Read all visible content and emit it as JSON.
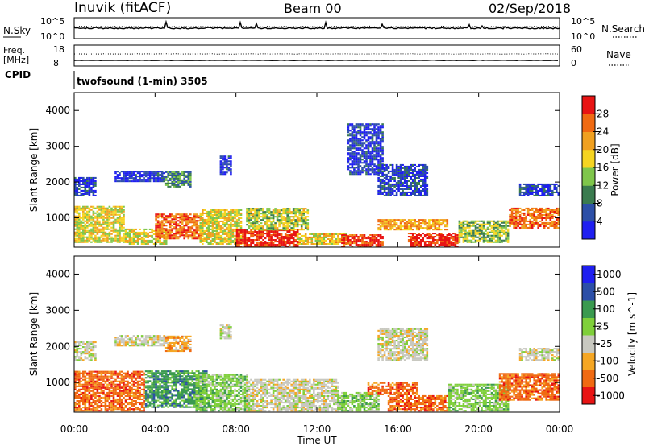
{
  "header": {
    "station": "Inuvik (fitACF)",
    "beam": "Beam 00",
    "date": "02/Sep/2018"
  },
  "noise_panel": {
    "left_label": "N.Sky",
    "left_ticks": [
      "10^5",
      "10^0"
    ],
    "right_ticks": [
      "10^5",
      "10^0"
    ],
    "right_label": "N.Search"
  },
  "freq_panel": {
    "left_label_1": "Freq.",
    "left_label_2": "[MHz]",
    "left_ticks": [
      "18",
      "8"
    ],
    "right_ticks": [
      "60",
      "0"
    ],
    "right_label": "Nave"
  },
  "cpid_panel": {
    "label": "CPID",
    "program": "twofsound (1-min) 3505"
  },
  "colors": {
    "power": [
      "#1f1ff0",
      "#2c4fa7",
      "#3a7b4f",
      "#7fc64b",
      "#f5d421",
      "#f0a020",
      "#f06a12",
      "#e81414"
    ],
    "velocity": [
      "#e81414",
      "#f06a12",
      "#f5a623",
      "#c8c8c0",
      "#7fcf3a",
      "#3a9a4f",
      "#2c4fa7",
      "#1f1ff0"
    ]
  },
  "chart_data": [
    {
      "type": "heatmap",
      "title": "Power",
      "xlabel": "Time UT",
      "ylabel": "Slant Range [km]",
      "x_ticks": [
        "00:00",
        "04:00",
        "08:00",
        "12:00",
        "16:00",
        "20:00",
        "00:00"
      ],
      "x_range_hours": [
        0,
        24
      ],
      "y_ticks": [
        1000,
        2000,
        3000,
        4000
      ],
      "ylim": [
        180,
        4500
      ],
      "colorbar": {
        "label": "Power [dB]",
        "ticks": [
          "4",
          "8",
          "12",
          "16",
          "20",
          "24",
          "28"
        ],
        "range": [
          0,
          30
        ]
      },
      "regions": [
        {
          "t": [
            0.0,
            2.5
          ],
          "r": [
            300,
            1300
          ],
          "level": 0.55
        },
        {
          "t": [
            2.5,
            4.5
          ],
          "r": [
            250,
            700
          ],
          "level": 0.55
        },
        {
          "t": [
            4.0,
            6.2
          ],
          "r": [
            400,
            1100
          ],
          "level": 0.8
        },
        {
          "t": [
            6.2,
            8.2
          ],
          "r": [
            250,
            1200
          ],
          "level": 0.55
        },
        {
          "t": [
            8.0,
            11.0
          ],
          "r": [
            180,
            650
          ],
          "level": 0.95
        },
        {
          "t": [
            8.5,
            11.5
          ],
          "r": [
            650,
            1250
          ],
          "level": 0.5
        },
        {
          "t": [
            11.0,
            13.5
          ],
          "r": [
            250,
            550
          ],
          "level": 0.6
        },
        {
          "t": [
            13.2,
            15.2
          ],
          "r": [
            180,
            500
          ],
          "level": 0.9
        },
        {
          "t": [
            15.0,
            18.5
          ],
          "r": [
            650,
            950
          ],
          "level": 0.7
        },
        {
          "t": [
            16.5,
            19.0
          ],
          "r": [
            180,
            550
          ],
          "level": 0.95
        },
        {
          "t": [
            19.0,
            21.5
          ],
          "r": [
            300,
            900
          ],
          "level": 0.45
        },
        {
          "t": [
            21.5,
            24.0
          ],
          "r": [
            700,
            1250
          ],
          "level": 0.8
        },
        {
          "t": [
            0.0,
            1.0
          ],
          "r": [
            1600,
            2100
          ],
          "level": 0.12
        },
        {
          "t": [
            2.0,
            4.5
          ],
          "r": [
            2000,
            2300
          ],
          "level": 0.1
        },
        {
          "t": [
            4.5,
            5.7
          ],
          "r": [
            1850,
            2300
          ],
          "level": 0.3
        },
        {
          "t": [
            7.2,
            7.7
          ],
          "r": [
            2200,
            2700
          ],
          "level": 0.1
        },
        {
          "t": [
            13.5,
            15.2
          ],
          "r": [
            2200,
            3600
          ],
          "level": 0.12
        },
        {
          "t": [
            15.0,
            17.5
          ],
          "r": [
            1600,
            2500
          ],
          "level": 0.15
        },
        {
          "t": [
            22.0,
            24.0
          ],
          "r": [
            1600,
            1950
          ],
          "level": 0.15
        }
      ]
    },
    {
      "type": "heatmap",
      "title": "Velocity",
      "xlabel": "Time UT",
      "ylabel": "Slant Range [km]",
      "x_ticks": [
        "00:00",
        "04:00",
        "08:00",
        "12:00",
        "16:00",
        "20:00",
        "00:00"
      ],
      "x_range_hours": [
        0,
        24
      ],
      "y_ticks": [
        1000,
        2000,
        3000,
        4000
      ],
      "ylim": [
        180,
        4500
      ],
      "colorbar": {
        "label": "Velocity [m s^-1]",
        "ticks": [
          "-1000",
          "-500",
          "-100",
          "-25",
          "25",
          "100",
          "500",
          "1000"
        ]
      },
      "regions": [
        {
          "t": [
            0.0,
            3.5
          ],
          "r": [
            200,
            1300
          ],
          "cls": 1
        },
        {
          "t": [
            3.5,
            6.5
          ],
          "r": [
            300,
            1300
          ],
          "cls": 5
        },
        {
          "t": [
            6.0,
            8.5
          ],
          "r": [
            200,
            1200
          ],
          "cls": 4
        },
        {
          "t": [
            8.5,
            13.0
          ],
          "r": [
            200,
            1100
          ],
          "cls": 3
        },
        {
          "t": [
            13.0,
            15.0
          ],
          "r": [
            200,
            700
          ],
          "cls": 4
        },
        {
          "t": [
            14.5,
            17.0
          ],
          "r": [
            650,
            1000
          ],
          "cls": 1
        },
        {
          "t": [
            15.5,
            18.5
          ],
          "r": [
            200,
            650
          ],
          "cls": 1
        },
        {
          "t": [
            18.5,
            21.5
          ],
          "r": [
            200,
            950
          ],
          "cls": 4
        },
        {
          "t": [
            21.0,
            24.0
          ],
          "r": [
            500,
            1250
          ],
          "cls": 1
        },
        {
          "t": [
            0.0,
            1.0
          ],
          "r": [
            1600,
            2100
          ],
          "cls": 3
        },
        {
          "t": [
            2.0,
            4.5
          ],
          "r": [
            2000,
            2300
          ],
          "cls": 3
        },
        {
          "t": [
            4.5,
            5.7
          ],
          "r": [
            1850,
            2300
          ],
          "cls": 2
        },
        {
          "t": [
            7.2,
            7.7
          ],
          "r": [
            2200,
            2600
          ],
          "cls": 3
        },
        {
          "t": [
            15.0,
            17.5
          ],
          "r": [
            1600,
            2500
          ],
          "cls": 3
        },
        {
          "t": [
            22.0,
            24.0
          ],
          "r": [
            1600,
            1950
          ],
          "cls": 3
        }
      ]
    }
  ]
}
